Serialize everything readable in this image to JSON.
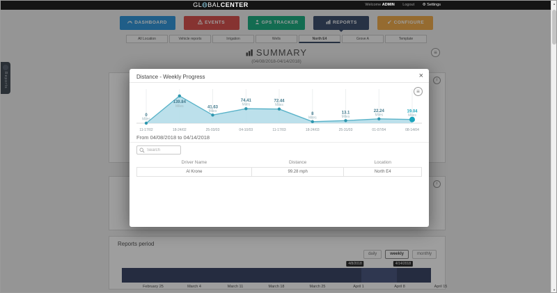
{
  "header": {
    "logo_prefix": "GL",
    "logo_mid": "BAL",
    "logo_suffix": "CENTER",
    "welcome": "Welcome",
    "username": "ADMIN",
    "logout": "Logout",
    "settings": "Settings"
  },
  "nav": {
    "items": [
      {
        "label": "DASHBOARD",
        "icon": "gauge-icon",
        "color": "#3498db",
        "active": false
      },
      {
        "label": "EVENTS",
        "icon": "warning-icon",
        "color": "#d9534f",
        "active": false
      },
      {
        "label": "GPS TRACKER",
        "icon": "person-pin-icon",
        "color": "#1fae84",
        "active": false
      },
      {
        "label": "REPORTS",
        "icon": "bar-chart-icon",
        "color": "#3f5170",
        "active": true
      },
      {
        "label": "CONFIGURE",
        "icon": "wrench-icon",
        "color": "#f0ad4e",
        "active": false
      }
    ]
  },
  "tabs": {
    "items": [
      "All Location",
      "Vehicle reports",
      "Irrigation",
      "Wells",
      "North E4",
      "Grove A",
      "Template"
    ],
    "active_index": 4
  },
  "page": {
    "title": "SUMMARY",
    "subtitle": "(04/08/2018-04/14/2018)"
  },
  "side_tab": {
    "label": "Reports"
  },
  "modal": {
    "title": "Distance - Weekly Progress",
    "range_heading": "From 04/08/2018 to 04/14/2018",
    "search_placeholder": "Search",
    "table": {
      "headers": [
        "Driver Name",
        "Distance",
        "Location"
      ],
      "rows": [
        [
          "Al Krone",
          "99.28 mph",
          "North E4"
        ]
      ]
    }
  },
  "chart_data": {
    "type": "area",
    "title": "Distance - Weekly Progress",
    "categories": [
      "11-17/02",
      "18-24/02",
      "25-03/03",
      "04-10/03",
      "11-17/03",
      "18-24/03",
      "25-31/03",
      "01-07/04",
      "08-14/04"
    ],
    "values": [
      0,
      139.84,
      41.63,
      74.41,
      72.44,
      8,
      13.1,
      22.24,
      19.04
    ],
    "unit": "Miles",
    "xlabel": "",
    "ylabel": "",
    "ylim": [
      0,
      150
    ],
    "grid": "vertical",
    "legend": "none",
    "highlight_last_point": true
  },
  "reports_period": {
    "title": "Reports period",
    "buttons": [
      "daily",
      "weekly",
      "monthly"
    ],
    "active_button": "weekly",
    "range_tooltips": [
      "4/8/2018",
      "4/14/2018"
    ],
    "axis_labels": [
      "February 25",
      "March 4",
      "March 11",
      "March 18",
      "March 25",
      "April 1",
      "April 8",
      "April 15"
    ]
  },
  "icons": {
    "close": "×",
    "export_menu": "≡",
    "info": "i",
    "settings_gear": "⚙",
    "scroll_up": "▲",
    "scroll_down": "▼"
  },
  "colors": {
    "header_bg": "#141414",
    "chart_line": "#58b2c8",
    "chart_fill": "#b5dde9",
    "chart_point": "#2e96ae",
    "chart_highlight": "#1ba4bc",
    "timeline_bar": "#3c4868",
    "timeline_selection": "#4c5a82",
    "active_tab_underline": "#3d4d66"
  }
}
